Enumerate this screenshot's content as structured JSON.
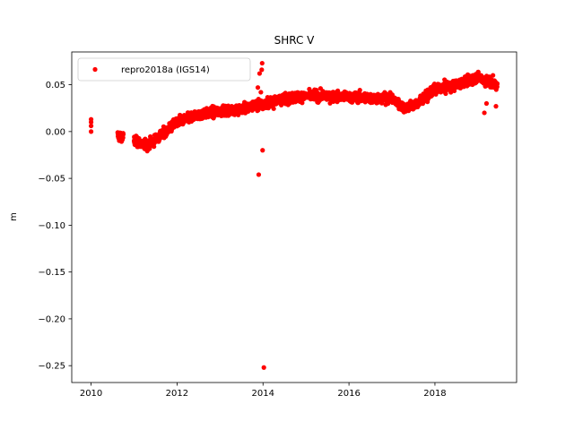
{
  "chart_data": {
    "type": "scatter",
    "title": "SHRC V",
    "xlabel": "",
    "ylabel": "m",
    "xlim": [
      2009.55,
      2019.9
    ],
    "ylim": [
      -0.268,
      0.085
    ],
    "xticks": [
      2010,
      2012,
      2014,
      2016,
      2018
    ],
    "yticks": [
      0.05,
      0.0,
      -0.05,
      -0.1,
      -0.15,
      -0.2,
      -0.25
    ],
    "ytick_labels": [
      "0.05",
      "0.00",
      "−0.05",
      "−0.10",
      "−0.15",
      "−0.20",
      "−0.25"
    ],
    "grid": false,
    "legend_position": "top-left",
    "series": [
      {
        "name": "repro2018a (IGS14)",
        "color": "#ff0000",
        "marker": "circle",
        "trend": [
          [
            2010.0,
            0.008
          ],
          [
            2010.6,
            -0.004
          ],
          [
            2011.0,
            -0.01
          ],
          [
            2011.3,
            -0.015
          ],
          [
            2011.6,
            -0.005
          ],
          [
            2012.0,
            0.01
          ],
          [
            2012.5,
            0.018
          ],
          [
            2013.0,
            0.022
          ],
          [
            2013.5,
            0.024
          ],
          [
            2014.0,
            0.03
          ],
          [
            2014.5,
            0.035
          ],
          [
            2015.0,
            0.038
          ],
          [
            2015.5,
            0.038
          ],
          [
            2016.0,
            0.037
          ],
          [
            2016.5,
            0.036
          ],
          [
            2017.0,
            0.035
          ],
          [
            2017.3,
            0.025
          ],
          [
            2017.6,
            0.03
          ],
          [
            2018.0,
            0.045
          ],
          [
            2018.5,
            0.05
          ],
          [
            2019.0,
            0.058
          ],
          [
            2019.4,
            0.05
          ]
        ],
        "gaps": [
          [
            2010.05,
            2010.6
          ],
          [
            2010.75,
            2011.0
          ]
        ],
        "noise_sd": 0.006,
        "n_points": 2600,
        "points": [
          [
            2010.0,
            0.013
          ],
          [
            2010.0,
            0.01
          ],
          [
            2010.0,
            0.006
          ],
          [
            2010.0,
            0.0
          ],
          [
            2013.97,
            0.066
          ],
          [
            2013.98,
            0.073
          ],
          [
            2013.92,
            0.062
          ],
          [
            2013.88,
            0.047
          ],
          [
            2013.95,
            0.042
          ],
          [
            2013.9,
            -0.046
          ],
          [
            2013.99,
            -0.02
          ],
          [
            2014.02,
            -0.252
          ],
          [
            2019.15,
            0.02
          ],
          [
            2019.2,
            0.03
          ],
          [
            2019.42,
            0.027
          ],
          [
            2019.35,
            0.06
          ]
        ]
      }
    ]
  }
}
